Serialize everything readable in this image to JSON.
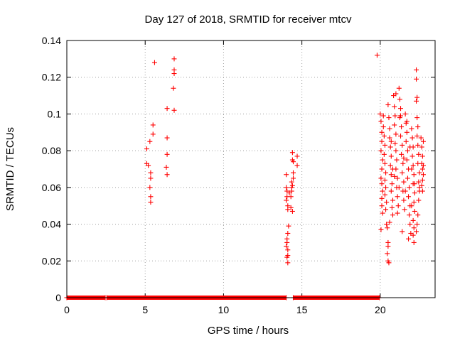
{
  "chart_data": {
    "type": "scatter",
    "title": "Day 127 of 2018, SRMTID for receiver mtcv",
    "xlabel": "GPS time / hours",
    "ylabel": "SRMTID / TECUs",
    "xlim": [
      0,
      23.5
    ],
    "ylim": [
      0,
      0.14
    ],
    "xticks": [
      0,
      5,
      10,
      15,
      20
    ],
    "xtick_labels": [
      "0",
      "5",
      "10",
      "15",
      "20"
    ],
    "yticks": [
      0,
      0.02,
      0.04,
      0.06,
      0.08,
      0.1,
      0.12,
      0.14
    ],
    "ytick_labels": [
      "0",
      "0.02",
      "0.04",
      "0.06",
      "0.08",
      "0.1",
      "0.12",
      "0.14"
    ],
    "grid": true,
    "marker": "+",
    "color": "#ff0000",
    "zero_segments": [
      [
        0,
        2.45
      ],
      [
        2.55,
        14.0
      ],
      [
        14.45,
        19.95
      ]
    ],
    "series": [
      {
        "name": "SRMTID",
        "points": [
          [
            5.1,
            0.081
          ],
          [
            5.1,
            0.073
          ],
          [
            5.2,
            0.072
          ],
          [
            5.3,
            0.085
          ],
          [
            5.35,
            0.068
          ],
          [
            5.35,
            0.065
          ],
          [
            5.3,
            0.06
          ],
          [
            5.35,
            0.055
          ],
          [
            5.35,
            0.052
          ],
          [
            5.5,
            0.094
          ],
          [
            5.5,
            0.089
          ],
          [
            5.6,
            0.128
          ],
          [
            6.4,
            0.103
          ],
          [
            6.4,
            0.087
          ],
          [
            6.4,
            0.078
          ],
          [
            6.35,
            0.071
          ],
          [
            6.4,
            0.067
          ],
          [
            6.85,
            0.13
          ],
          [
            6.85,
            0.124
          ],
          [
            6.85,
            0.122
          ],
          [
            6.8,
            0.114
          ],
          [
            6.85,
            0.102
          ],
          [
            14.0,
            0.067
          ],
          [
            14.0,
            0.06
          ],
          [
            14.05,
            0.058
          ],
          [
            14.05,
            0.055
          ],
          [
            14.0,
            0.053
          ],
          [
            14.1,
            0.05
          ],
          [
            14.1,
            0.048
          ],
          [
            14.15,
            0.039
          ],
          [
            14.1,
            0.035
          ],
          [
            14.05,
            0.032
          ],
          [
            14.05,
            0.03
          ],
          [
            14.0,
            0.028
          ],
          [
            14.1,
            0.026
          ],
          [
            14.1,
            0.023
          ],
          [
            14.05,
            0.022
          ],
          [
            14.1,
            0.019
          ],
          [
            14.2,
            0.057
          ],
          [
            14.3,
            0.055
          ],
          [
            14.3,
            0.049
          ],
          [
            14.35,
            0.063
          ],
          [
            14.35,
            0.06
          ],
          [
            14.35,
            0.058
          ],
          [
            14.4,
            0.079
          ],
          [
            14.4,
            0.075
          ],
          [
            14.45,
            0.074
          ],
          [
            14.45,
            0.068
          ],
          [
            14.45,
            0.065
          ],
          [
            14.4,
            0.061
          ],
          [
            14.4,
            0.047
          ],
          [
            14.7,
            0.077
          ],
          [
            14.7,
            0.072
          ],
          [
            19.8,
            0.132
          ],
          [
            20.0,
            0.1
          ],
          [
            20.05,
            0.096
          ],
          [
            20.1,
            0.09
          ],
          [
            20.1,
            0.085
          ],
          [
            20.05,
            0.08
          ],
          [
            20.15,
            0.075
          ],
          [
            20.1,
            0.07
          ],
          [
            20.05,
            0.065
          ],
          [
            20.1,
            0.062
          ],
          [
            20.15,
            0.058
          ],
          [
            20.1,
            0.054
          ],
          [
            20.1,
            0.05
          ],
          [
            20.15,
            0.046
          ],
          [
            20.05,
            0.037
          ],
          [
            20.2,
            0.093
          ],
          [
            20.25,
            0.088
          ],
          [
            20.3,
            0.083
          ],
          [
            20.25,
            0.078
          ],
          [
            20.3,
            0.073
          ],
          [
            20.35,
            0.068
          ],
          [
            20.3,
            0.064
          ],
          [
            20.35,
            0.06
          ],
          [
            20.3,
            0.056
          ],
          [
            20.4,
            0.052
          ],
          [
            20.35,
            0.048
          ],
          [
            20.4,
            0.04
          ],
          [
            20.45,
            0.038
          ],
          [
            20.5,
            0.03
          ],
          [
            20.5,
            0.028
          ],
          [
            20.45,
            0.024
          ],
          [
            20.5,
            0.02
          ],
          [
            20.55,
            0.019
          ],
          [
            20.5,
            0.105
          ],
          [
            20.55,
            0.098
          ],
          [
            20.6,
            0.092
          ],
          [
            20.6,
            0.087
          ],
          [
            20.65,
            0.082
          ],
          [
            20.7,
            0.077
          ],
          [
            20.65,
            0.072
          ],
          [
            20.7,
            0.067
          ],
          [
            20.75,
            0.062
          ],
          [
            20.7,
            0.058
          ],
          [
            20.8,
            0.053
          ],
          [
            20.75,
            0.049
          ],
          [
            20.8,
            0.045
          ],
          [
            20.85,
            0.11
          ],
          [
            20.9,
            0.104
          ],
          [
            20.95,
            0.099
          ],
          [
            20.9,
            0.094
          ],
          [
            21.0,
            0.089
          ],
          [
            20.95,
            0.084
          ],
          [
            21.0,
            0.08
          ],
          [
            21.05,
            0.075
          ],
          [
            21.0,
            0.07
          ],
          [
            21.1,
            0.065
          ],
          [
            21.05,
            0.06
          ],
          [
            21.1,
            0.055
          ],
          [
            21.15,
            0.05
          ],
          [
            21.1,
            0.046
          ],
          [
            21.2,
            0.114
          ],
          [
            21.25,
            0.108
          ],
          [
            21.3,
            0.103
          ],
          [
            21.25,
            0.098
          ],
          [
            21.35,
            0.093
          ],
          [
            21.3,
            0.088
          ],
          [
            21.4,
            0.083
          ],
          [
            21.35,
            0.078
          ],
          [
            21.45,
            0.073
          ],
          [
            21.4,
            0.068
          ],
          [
            21.5,
            0.063
          ],
          [
            21.45,
            0.058
          ],
          [
            21.5,
            0.053
          ],
          [
            21.55,
            0.048
          ],
          [
            21.6,
            0.1
          ],
          [
            21.65,
            0.095
          ],
          [
            21.7,
            0.09
          ],
          [
            21.65,
            0.085
          ],
          [
            21.75,
            0.08
          ],
          [
            21.7,
            0.075
          ],
          [
            21.8,
            0.07
          ],
          [
            21.75,
            0.065
          ],
          [
            21.85,
            0.06
          ],
          [
            21.8,
            0.055
          ],
          [
            21.9,
            0.05
          ],
          [
            21.85,
            0.045
          ],
          [
            21.9,
            0.04
          ],
          [
            21.95,
            0.035
          ],
          [
            22.0,
            0.092
          ],
          [
            22.05,
            0.087
          ],
          [
            22.1,
            0.082
          ],
          [
            22.05,
            0.077
          ],
          [
            22.1,
            0.072
          ],
          [
            22.15,
            0.067
          ],
          [
            22.1,
            0.062
          ],
          [
            22.2,
            0.057
          ],
          [
            22.15,
            0.052
          ],
          [
            22.2,
            0.047
          ],
          [
            22.1,
            0.042
          ],
          [
            22.15,
            0.038
          ],
          [
            22.1,
            0.034
          ],
          [
            22.15,
            0.03
          ],
          [
            22.3,
            0.124
          ],
          [
            22.3,
            0.119
          ],
          [
            22.35,
            0.109
          ],
          [
            22.3,
            0.107
          ],
          [
            22.35,
            0.098
          ],
          [
            22.4,
            0.093
          ],
          [
            22.35,
            0.088
          ],
          [
            22.4,
            0.083
          ],
          [
            22.45,
            0.078
          ],
          [
            22.4,
            0.073
          ],
          [
            22.5,
            0.068
          ],
          [
            22.45,
            0.063
          ],
          [
            22.5,
            0.058
          ],
          [
            22.45,
            0.053
          ],
          [
            22.4,
            0.045
          ],
          [
            22.35,
            0.04
          ],
          [
            22.3,
            0.036
          ],
          [
            22.6,
            0.087
          ],
          [
            22.65,
            0.082
          ],
          [
            22.7,
            0.077
          ],
          [
            22.65,
            0.073
          ],
          [
            22.7,
            0.07
          ],
          [
            22.75,
            0.067
          ],
          [
            22.7,
            0.064
          ],
          [
            22.65,
            0.061
          ],
          [
            22.7,
            0.058
          ],
          [
            22.75,
            0.085
          ],
          [
            22.75,
            0.072
          ],
          [
            20.2,
            0.099
          ],
          [
            21.0,
            0.111
          ],
          [
            21.3,
            0.099
          ],
          [
            21.7,
            0.096
          ],
          [
            20.7,
            0.085
          ],
          [
            21.9,
            0.082
          ],
          [
            22.0,
            0.07
          ],
          [
            20.8,
            0.07
          ],
          [
            21.2,
            0.06
          ],
          [
            21.6,
            0.058
          ],
          [
            22.2,
            0.062
          ],
          [
            20.6,
            0.041
          ],
          [
            21.4,
            0.036
          ],
          [
            21.8,
            0.032
          ],
          [
            22.0,
            0.05
          ],
          [
            20.9,
            0.066
          ],
          [
            21.5,
            0.076
          ],
          [
            22.5,
            0.06
          ]
        ]
      }
    ]
  }
}
